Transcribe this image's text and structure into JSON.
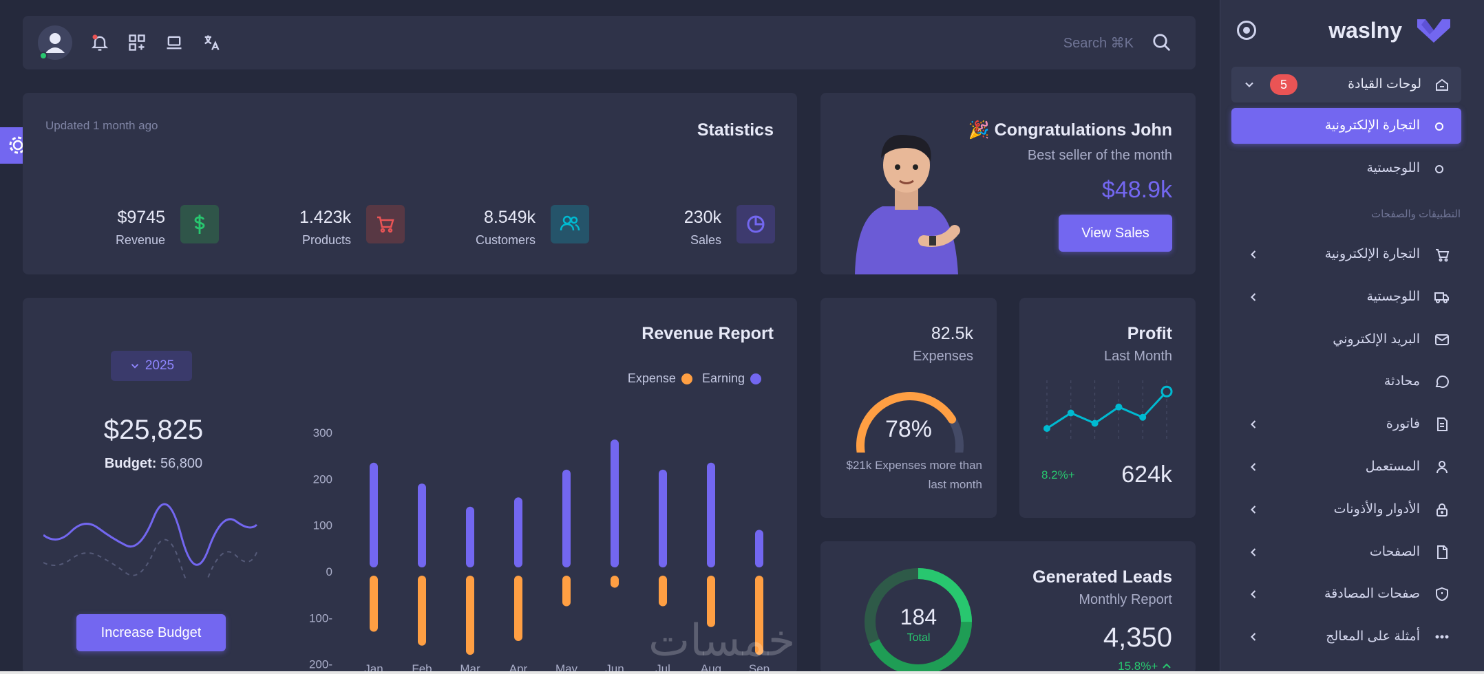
{
  "brand": {
    "name": "waslny",
    "color": "#7367f0"
  },
  "topbar": {
    "search_placeholder": "Search ⌘K",
    "icons": [
      "avatar",
      "bell-icon",
      "apps-icon",
      "laptop-icon",
      "translate-icon",
      "search-icon"
    ]
  },
  "statistics": {
    "title": "Statistics",
    "updated": "Updated 1 month ago",
    "items": [
      {
        "value": "230k",
        "label": "Sales",
        "icon": "pie-chart-icon",
        "color": "#7367f0"
      },
      {
        "value": "8.549k",
        "label": "Customers",
        "icon": "users-icon",
        "color": "#00bad1"
      },
      {
        "value": "1.423k",
        "label": "Products",
        "icon": "cart-icon",
        "color": "#ea5455"
      },
      {
        "value": "$9745",
        "label": "Revenue",
        "icon": "dollar-icon",
        "color": "#28c76f"
      }
    ]
  },
  "congrats": {
    "title": "Congratulations John",
    "subtitle": "Best seller of the month",
    "amount": "$48.9k",
    "button": "View Sales"
  },
  "revenue_report": {
    "title": "Revenue Report",
    "legend": {
      "earning": "Earning",
      "expense": "Expense"
    },
    "year": "2025",
    "amount": "$25,825",
    "budget_label": "Budget:",
    "budget_value": "56,800",
    "button": "Increase Budget"
  },
  "chart_data": {
    "type": "bar",
    "title": "Revenue Report",
    "categories": [
      "Jan",
      "Feb",
      "Mar",
      "Apr",
      "May",
      "Jun",
      "Jul",
      "Aug",
      "Sep"
    ],
    "series": [
      {
        "name": "Earning",
        "values": [
          235,
          190,
          140,
          160,
          220,
          285,
          220,
          235,
          90
        ],
        "color": "#7367f0"
      },
      {
        "name": "Expense",
        "values": [
          -130,
          -160,
          -180,
          -150,
          -75,
          -35,
          -75,
          -120,
          -180
        ],
        "color": "#ff9f43"
      }
    ],
    "yticks": [
      "300",
      "200",
      "100",
      "0",
      "100-",
      "200-"
    ],
    "ylim": [
      -200,
      300
    ]
  },
  "expenses": {
    "value": "82.5k",
    "label": "Expenses",
    "percent": 78,
    "percent_text": "78%",
    "note": "$21k Expenses more than last month"
  },
  "profit": {
    "title": "Profit",
    "subtitle": "Last Month",
    "value": "624k",
    "change": "8.2%+",
    "points": [
      12,
      30,
      18,
      37,
      25,
      55
    ]
  },
  "leads": {
    "title": "Generated Leads",
    "subtitle": "Monthly Report",
    "value": "4,350",
    "change": "15.8%+",
    "total": "184",
    "total_label": "Total"
  },
  "sidebar": {
    "dashboards": {
      "label": "لوحات القيادة",
      "badge": "5"
    },
    "sub_items": [
      {
        "label": "التجارة الإلكترونية",
        "active": true
      },
      {
        "label": "اللوجستية",
        "active": false
      }
    ],
    "section_title": "التطبيقات والصفحات",
    "items": [
      {
        "label": "التجارة الإلكترونية",
        "icon": "cart-icon",
        "chevron": true
      },
      {
        "label": "اللوجستية",
        "icon": "truck-icon",
        "chevron": true
      },
      {
        "label": "البريد الإلكتروني",
        "icon": "mail-icon",
        "chevron": false
      },
      {
        "label": "محادثة",
        "icon": "chat-icon",
        "chevron": false
      },
      {
        "label": "فاتورة",
        "icon": "invoice-icon",
        "chevron": true
      },
      {
        "label": "المستعمل",
        "icon": "user-icon",
        "chevron": true
      },
      {
        "label": "الأدوار والأذونات",
        "icon": "lock-icon",
        "chevron": true
      },
      {
        "label": "الصفحات",
        "icon": "file-icon",
        "chevron": true
      },
      {
        "label": "صفحات المصادقة",
        "icon": "shield-icon",
        "chevron": true
      },
      {
        "label": "أمثلة على المعالج",
        "icon": "dots-icon",
        "chevron": true
      }
    ]
  },
  "watermark": "خمسات"
}
